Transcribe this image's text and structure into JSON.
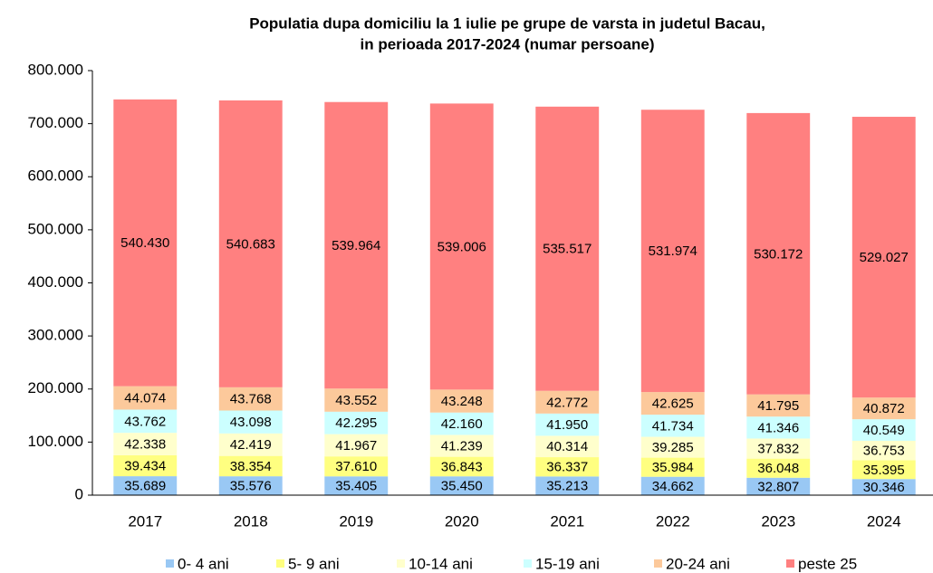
{
  "chart_data": {
    "type": "stacked_bar",
    "title": [
      "Populatia dupa domiciliu la 1 iulie pe grupe de varsta in judetul Bacau,",
      "in perioada 2017-2024  (numar persoane)"
    ],
    "categories": [
      "2017",
      "2018",
      "2019",
      "2020",
      "2021",
      "2022",
      "2023",
      "2024"
    ],
    "series": [
      {
        "name": "0- 4 ani",
        "color": "#99c8f4",
        "values": [
          35689,
          35576,
          35405,
          35450,
          35213,
          34662,
          32807,
          30346
        ],
        "value_labels": [
          "35.689",
          "35.576",
          "35.405",
          "35.450",
          "35.213",
          "34.662",
          "32.807",
          "30.346"
        ]
      },
      {
        "name": "5- 9 ani",
        "color": "#ffff80",
        "values": [
          39434,
          38354,
          37610,
          36843,
          36337,
          35984,
          36048,
          35395
        ],
        "value_labels": [
          "39.434",
          "38.354",
          "37.610",
          "36.843",
          "36.337",
          "35.984",
          "36.048",
          "35.395"
        ]
      },
      {
        "name": "10-14 ani",
        "color": "#ffffcc",
        "values": [
          42338,
          42419,
          41967,
          41239,
          40314,
          39285,
          37832,
          36753
        ],
        "value_labels": [
          "42.338",
          "42.419",
          "41.967",
          "41.239",
          "40.314",
          "39.285",
          "37.832",
          "36.753"
        ]
      },
      {
        "name": "15-19 ani",
        "color": "#ccffff",
        "values": [
          43762,
          43098,
          42295,
          42160,
          41950,
          41734,
          41346,
          40549
        ],
        "value_labels": [
          "43.762",
          "43.098",
          "42.295",
          "42.160",
          "41.950",
          "41.734",
          "41.346",
          "40.549"
        ]
      },
      {
        "name": "20-24 ani",
        "color": "#fcc99b",
        "values": [
          44074,
          43768,
          43552,
          43248,
          42772,
          42625,
          41795,
          40872
        ],
        "value_labels": [
          "44.074",
          "43.768",
          "43.552",
          "43.248",
          "42.772",
          "42.625",
          "41.795",
          "40.872"
        ]
      },
      {
        "name": "peste 25",
        "color": "#ff8080",
        "values": [
          540430,
          540683,
          539964,
          539006,
          535517,
          531974,
          530172,
          529027
        ],
        "value_labels": [
          "540.430",
          "540.683",
          "539.964",
          "539.006",
          "535.517",
          "531.974",
          "530.172",
          "529.027"
        ]
      }
    ],
    "ylim": [
      0,
      800000
    ],
    "yticks": [
      0,
      {
        "value": 100000,
        "label": "100.000"
      },
      {
        "value": 200000,
        "label": "200.000"
      },
      {
        "value": 300000,
        "label": "300.000"
      },
      {
        "value": 400000,
        "label": "400.000"
      },
      {
        "value": 500000,
        "label": "500.000"
      },
      {
        "value": 600000,
        "label": "600.000"
      },
      {
        "value": 700000,
        "label": "700.000"
      },
      {
        "value": 800000,
        "label": "800.000"
      }
    ],
    "legend": "bottom"
  }
}
